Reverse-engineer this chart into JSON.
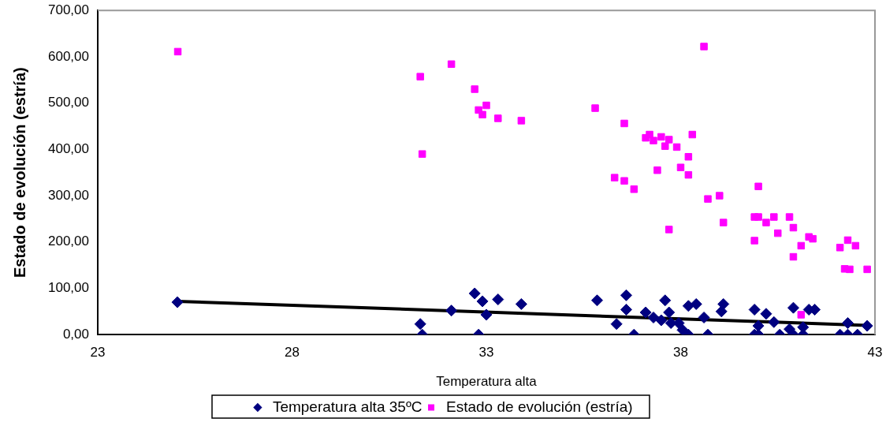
{
  "chart_data": {
    "type": "scatter",
    "xlabel": "Temperatura alta",
    "ylabel": "Estado de evolución (estría)",
    "xlim": [
      23,
      43
    ],
    "xticks": [
      23,
      28,
      33,
      38,
      43
    ],
    "ylim": [
      0,
      700
    ],
    "yticks": [
      {
        "value": 0,
        "label": "0,00"
      },
      {
        "value": 100,
        "label": "100,00"
      },
      {
        "value": 200,
        "label": "200,00"
      },
      {
        "value": 300,
        "label": "300,00"
      },
      {
        "value": 400,
        "label": "400,00"
      },
      {
        "value": 500,
        "label": "500,00"
      },
      {
        "value": 600,
        "label": "600,00"
      },
      {
        "value": 700,
        "label": "700,00"
      }
    ],
    "grid": false,
    "legend": "bottom",
    "series": [
      {
        "name": "Temperatura alta 35ºC",
        "color": "#000080",
        "marker": "diamond",
        "x": [
          25.05,
          31.3,
          31.35,
          32.1,
          32.7,
          32.9,
          33.0,
          32.8,
          33.3,
          33.9,
          35.85,
          36.6,
          36.6,
          36.35,
          36.8,
          37.1,
          37.3,
          37.5,
          37.6,
          37.7,
          37.75,
          37.95,
          38.05,
          38.2,
          38.2,
          38.4,
          38.6,
          38.7,
          39.1,
          39.05,
          39.9,
          40.0,
          39.9,
          40.0,
          40.2,
          40.4,
          40.55,
          40.9,
          40.8,
          40.9,
          41.15,
          41.15,
          41.3,
          41.45,
          42.1,
          42.3,
          42.3,
          42.55,
          42.8
        ],
        "values": [
          70,
          23,
          0,
          52,
          89,
          72,
          43,
          0,
          76,
          66,
          74,
          85,
          54,
          23,
          0,
          48,
          37,
          31,
          74,
          48,
          25,
          25,
          10,
          0,
          62,
          66,
          37,
          0,
          66,
          50,
          54,
          19,
          0,
          0,
          45,
          27,
          0,
          58,
          12,
          0,
          16,
          0,
          54,
          54,
          0,
          25,
          0,
          0,
          19
        ]
      },
      {
        "name": "Estado de evolución (estría)",
        "color": "#ff00ff",
        "marker": "square",
        "x": [
          25.06,
          31.3,
          31.35,
          32.1,
          32.7,
          32.8,
          32.9,
          33.0,
          33.3,
          33.9,
          35.8,
          38.6,
          36.55,
          37.2,
          37.1,
          37.3,
          37.5,
          37.6,
          37.7,
          37.9,
          38.3,
          38.2,
          38.0,
          38.2,
          37.4,
          36.3,
          36.55,
          36.8,
          40.0,
          37.7,
          38.7,
          39.0,
          39.1,
          39.9,
          40.0,
          40.2,
          40.4,
          40.5,
          40.8,
          40.9,
          39.9,
          40.9,
          41.1,
          41.3,
          41.4,
          42.1,
          42.3,
          42.5,
          42.22,
          42.35,
          42.8,
          41.1
        ],
        "values": [
          611,
          557,
          390,
          584,
          530,
          485,
          475,
          495,
          467,
          462,
          489,
          622,
          456,
          432,
          425,
          419,
          427,
          407,
          421,
          405,
          432,
          384,
          361,
          345,
          355,
          339,
          332,
          314,
          320,
          227,
          293,
          300,
          242,
          254,
          254,
          242,
          254,
          219,
          254,
          231,
          203,
          168,
          192,
          211,
          207,
          188,
          204,
          192,
          142,
          141,
          141,
          43
        ]
      },
      {
        "type": "line",
        "color": "#000000",
        "marker": "none",
        "line_style": "solid",
        "x": [
          25.05,
          42.8
        ],
        "values": [
          72,
          20
        ]
      }
    ]
  }
}
